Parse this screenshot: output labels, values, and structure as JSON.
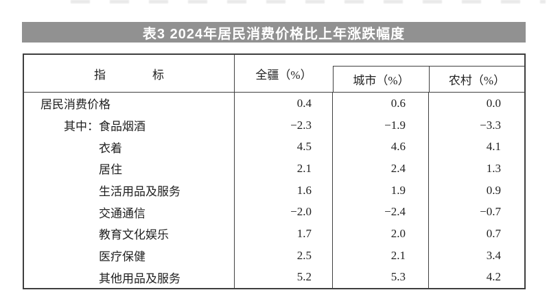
{
  "title": {
    "text": "表3 2024年居民消费价格比上年涨跌幅度",
    "bar_color": "#919191",
    "text_color": "#ffffff"
  },
  "table": {
    "header": {
      "indicator": "指　　　　标",
      "region": "全疆（%）",
      "urban": "城市（%）",
      "rural": "农村（%）"
    },
    "rows": [
      {
        "label": "居民消费价格",
        "xinjiang": "0.4",
        "urban": "0.6",
        "rural": "0.0"
      },
      {
        "label": "其中：食品烟酒",
        "xinjiang": "−2.3",
        "urban": "−1.9",
        "rural": "−3.3"
      },
      {
        "label": "衣着",
        "xinjiang": "4.5",
        "urban": "4.6",
        "rural": "4.1"
      },
      {
        "label": "居住",
        "xinjiang": "2.1",
        "urban": "2.4",
        "rural": "1.3"
      },
      {
        "label": "生活用品及服务",
        "xinjiang": "1.6",
        "urban": "1.9",
        "rural": "0.9"
      },
      {
        "label": "交通通信",
        "xinjiang": "−2.0",
        "urban": "−2.4",
        "rural": "−0.7"
      },
      {
        "label": "教育文化娱乐",
        "xinjiang": "1.7",
        "urban": "2.0",
        "rural": "0.7"
      },
      {
        "label": "医疗保健",
        "xinjiang": "2.5",
        "urban": "2.1",
        "rural": "3.4"
      },
      {
        "label": "其他用品及服务",
        "xinjiang": "5.2",
        "urban": "5.3",
        "rural": "4.2"
      }
    ],
    "border_color": "#3d3d3d"
  },
  "chart_data": {
    "type": "table",
    "title": "表3 2024年居民消费价格比上年涨跌幅度",
    "columns": [
      "指标",
      "全疆（%）",
      "城市（%）",
      "农村（%）"
    ],
    "rows": [
      [
        "居民消费价格",
        0.4,
        0.6,
        0.0
      ],
      [
        "其中：食品烟酒",
        -2.3,
        -1.9,
        -3.3
      ],
      [
        "衣着",
        4.5,
        4.6,
        4.1
      ],
      [
        "居住",
        2.1,
        2.4,
        1.3
      ],
      [
        "生活用品及服务",
        1.6,
        1.9,
        0.9
      ],
      [
        "交通通信",
        -2.0,
        -2.4,
        -0.7
      ],
      [
        "教育文化娱乐",
        1.7,
        2.0,
        0.7
      ],
      [
        "医疗保健",
        2.5,
        2.1,
        3.4
      ],
      [
        "其他用品及服务",
        5.2,
        5.3,
        4.2
      ]
    ]
  }
}
